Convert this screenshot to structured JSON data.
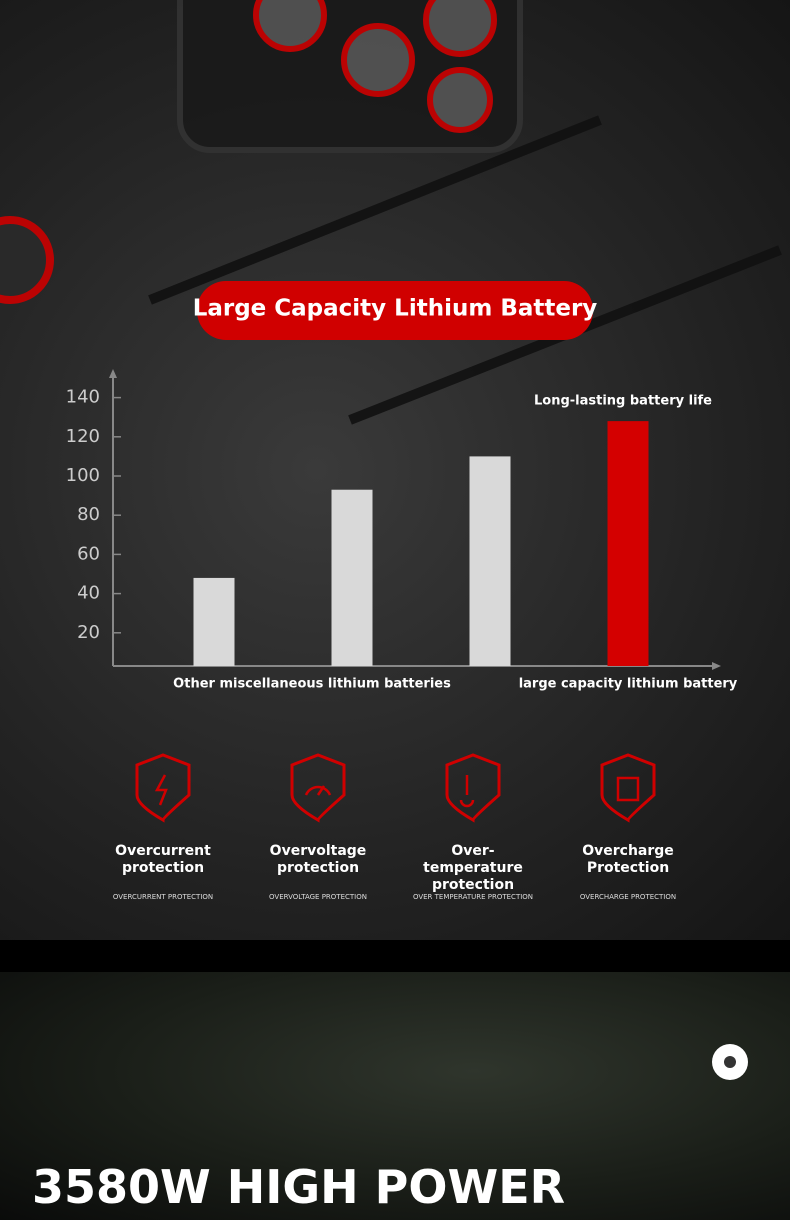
{
  "chart_data": {
    "type": "bar",
    "title": "Large Capacity Lithium Battery",
    "categories": [
      null,
      null,
      null,
      "large capacity lithium battery"
    ],
    "group_label": "Other miscellaneous lithium batteries",
    "annotation": "Long-lasting battery life",
    "values": [
      48,
      93,
      110,
      128
    ],
    "colors": [
      "#d9d9d9",
      "#d9d9d9",
      "#d9d9d9",
      "#d40000"
    ],
    "ylim": [
      0,
      150
    ],
    "yticks": [
      20,
      40,
      60,
      80,
      100,
      120,
      140
    ]
  },
  "features": [
    {
      "title": "Overcurrent protection",
      "subtitle": "OVERCURRENT PROTECTION"
    },
    {
      "title": "Overvoltage protection",
      "subtitle": "OVERVOLTAGE PROTECTION"
    },
    {
      "title": "Over-temperature protection",
      "subtitle": "OVER TEMPERATURE PROTECTION"
    },
    {
      "title": "Overcharge Protection",
      "subtitle": "OVERCHARGE PROTECTION"
    }
  ],
  "banner": {
    "headline": "3580W HIGH POWER"
  }
}
